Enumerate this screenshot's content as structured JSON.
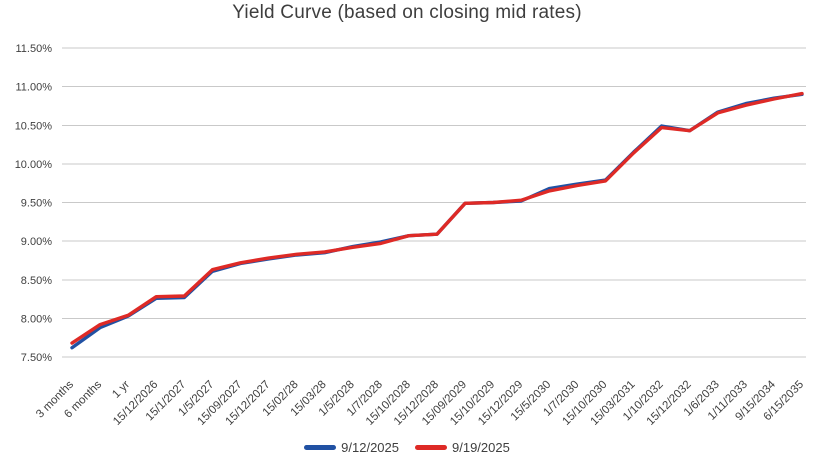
{
  "chart_data": {
    "type": "line",
    "title": "Yield Curve (based on closing mid rates)",
    "categories": [
      "3 months",
      "6 months",
      "1 yr",
      "15/12/2026",
      "15/1/2027",
      "1/5/2027",
      "15/09/2027",
      "15/12/2027",
      "15/02/28",
      "15/03/28",
      "1/5/2028",
      "1/7/2028",
      "15/10/2028",
      "15/12/2028",
      "15/09/2029",
      "15/10/2029",
      "15/12/2029",
      "15/5/2030",
      "1/7/2030",
      "15/10/2030",
      "15/03/2031",
      "1/10/2032",
      "15/12/2032",
      "1/6/2033",
      "1/11/2033",
      "9/15/2034",
      "6/15/2035"
    ],
    "series": [
      {
        "name": "9/12/2025",
        "color": "#2151A3",
        "values": [
          7.62,
          7.88,
          8.03,
          8.26,
          8.27,
          8.61,
          8.71,
          8.77,
          8.82,
          8.85,
          8.93,
          8.99,
          9.07,
          9.09,
          9.49,
          9.5,
          9.52,
          9.68,
          9.74,
          9.79,
          10.15,
          10.49,
          10.43,
          10.67,
          10.78,
          10.85,
          10.9
        ]
      },
      {
        "name": "9/19/2025",
        "color": "#DE2A26",
        "values": [
          7.68,
          7.92,
          8.04,
          8.28,
          8.29,
          8.63,
          8.72,
          8.78,
          8.83,
          8.86,
          8.92,
          8.97,
          9.07,
          9.09,
          9.49,
          9.5,
          9.53,
          9.65,
          9.72,
          9.78,
          10.14,
          10.47,
          10.43,
          10.66,
          10.76,
          10.84,
          10.91
        ]
      }
    ],
    "y_axis": {
      "min": 7.5,
      "max": 11.5,
      "step": 0.5,
      "tick_labels": [
        "11.50%",
        "11.00%",
        "10.50%",
        "10.00%",
        "9.50%",
        "9.00%",
        "8.50%",
        "8.00%",
        "7.50%"
      ]
    },
    "x_axis": {
      "label_rotation_deg": 45
    },
    "grid": true,
    "legend_position": "bottom",
    "colors": {
      "text": "#3F3F3F",
      "gridline": "#C9C9C9",
      "background": "#FFFFFF"
    }
  }
}
